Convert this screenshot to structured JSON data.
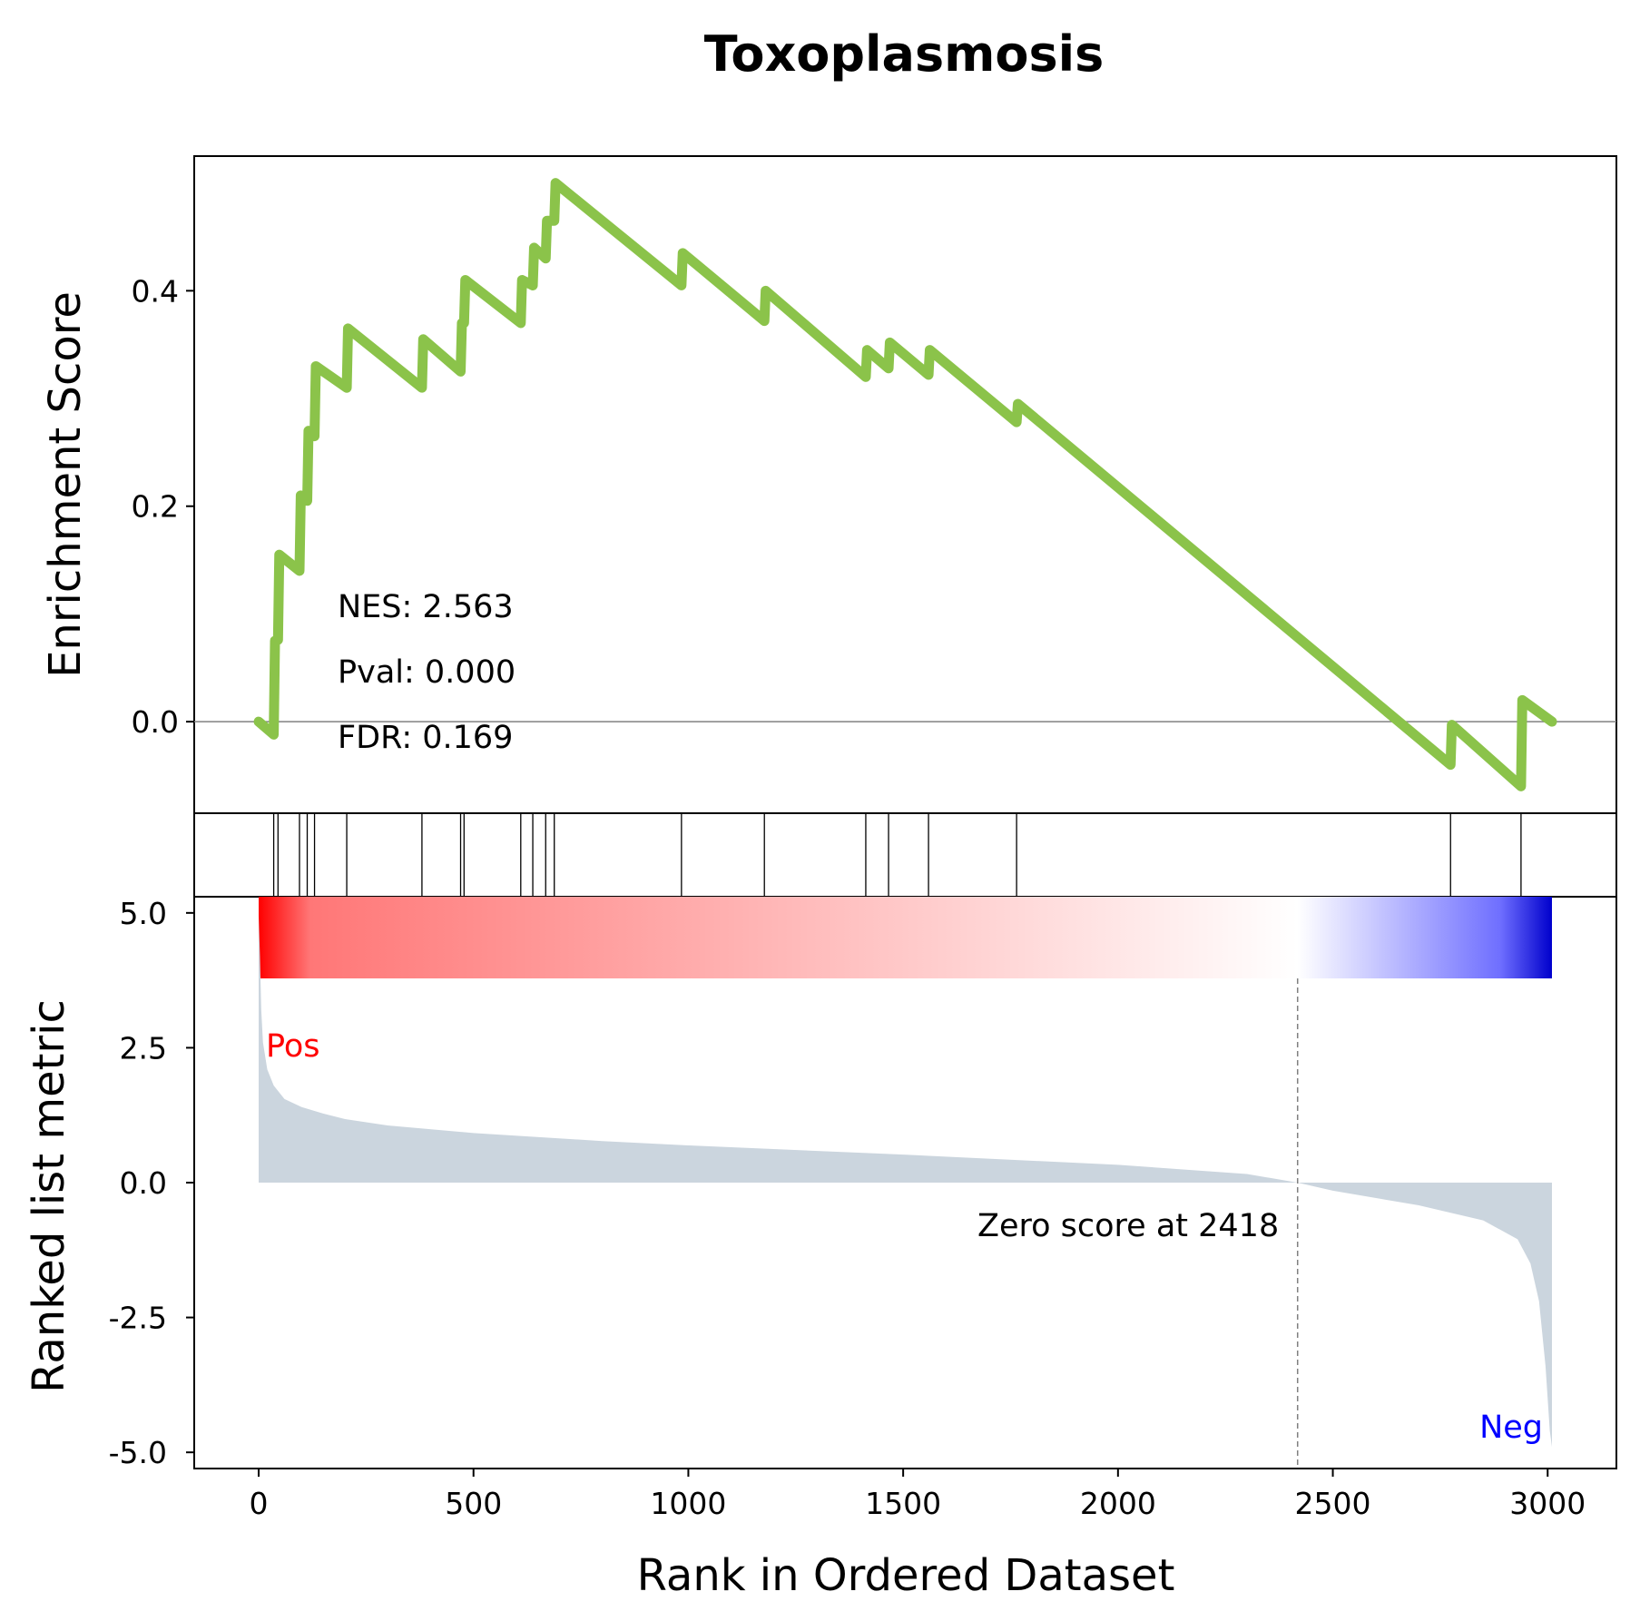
{
  "chart_data": {
    "type": "line",
    "title": "Toxoplasmosis",
    "xlabel": "Rank in Ordered Dataset",
    "x_ticks": [
      "0",
      "500",
      "1000",
      "1500",
      "2000",
      "2500",
      "3000"
    ],
    "xlim": [
      -150,
      3160
    ],
    "enrichment": {
      "ylabel": "Enrichment Score",
      "ylim": [
        -0.085,
        0.525
      ],
      "y_ticks": [
        "0.0",
        "0.2",
        "0.4"
      ],
      "line_color": "#8bc34a",
      "zero_line_color": "#808080",
      "points": [
        [
          0,
          0.0
        ],
        [
          35,
          -0.012
        ],
        [
          38,
          0.075
        ],
        [
          45,
          0.076
        ],
        [
          48,
          0.155
        ],
        [
          95,
          0.14
        ],
        [
          98,
          0.21
        ],
        [
          113,
          0.205
        ],
        [
          116,
          0.27
        ],
        [
          130,
          0.265
        ],
        [
          133,
          0.33
        ],
        [
          205,
          0.31
        ],
        [
          208,
          0.365
        ],
        [
          380,
          0.31
        ],
        [
          383,
          0.355
        ],
        [
          470,
          0.325
        ],
        [
          473,
          0.37
        ],
        [
          478,
          0.37
        ],
        [
          481,
          0.41
        ],
        [
          610,
          0.37
        ],
        [
          613,
          0.41
        ],
        [
          638,
          0.405
        ],
        [
          641,
          0.44
        ],
        [
          668,
          0.43
        ],
        [
          671,
          0.465
        ],
        [
          688,
          0.465
        ],
        [
          691,
          0.5
        ],
        [
          984,
          0.405
        ],
        [
          987,
          0.435
        ],
        [
          1177,
          0.372
        ],
        [
          1180,
          0.4
        ],
        [
          1413,
          0.32
        ],
        [
          1416,
          0.345
        ],
        [
          1466,
          0.328
        ],
        [
          1469,
          0.352
        ],
        [
          1559,
          0.322
        ],
        [
          1562,
          0.345
        ],
        [
          1764,
          0.278
        ],
        [
          1767,
          0.295
        ],
        [
          2774,
          -0.04
        ],
        [
          2777,
          -0.003
        ],
        [
          2938,
          -0.06
        ],
        [
          2941,
          0.02
        ],
        [
          3010,
          0.0
        ]
      ],
      "annotations": {
        "nes": "NES: 2.563",
        "pval": "Pval: 0.000",
        "fdr": "FDR: 0.169"
      }
    },
    "hits": {
      "positions": [
        35,
        45,
        95,
        113,
        130,
        205,
        380,
        470,
        478,
        610,
        638,
        668,
        688,
        984,
        1177,
        1413,
        1466,
        1559,
        1764,
        2774,
        2938
      ],
      "color": "#000000"
    },
    "ranked_metric": {
      "ylabel": "Ranked list metric",
      "ylim": [
        -5.3,
        5.3
      ],
      "y_ticks": [
        [
          "5.0",
          5.0
        ],
        [
          "2.5",
          2.5
        ],
        [
          "0.0",
          0.0
        ],
        [
          "-2.5",
          -2.5
        ],
        [
          "-5.0",
          -5.0
        ]
      ],
      "fill_color": "#cbd5de",
      "zero_cross_rank": 2418,
      "zero_cross_label": "Zero score at 2418",
      "pos_label": "Pos",
      "neg_label": "Neg",
      "pos_color": "#ff0000",
      "neg_color": "#0000ff",
      "dashed_line_color": "#808080",
      "gradient_start_color": "#ff0000",
      "gradient_mid_color": "#ffffff",
      "gradient_end_color": "#0000cc",
      "profile": [
        [
          0,
          4.95
        ],
        [
          3,
          4.2
        ],
        [
          6,
          3.2
        ],
        [
          10,
          2.6
        ],
        [
          20,
          2.1
        ],
        [
          35,
          1.8
        ],
        [
          60,
          1.55
        ],
        [
          100,
          1.4
        ],
        [
          150,
          1.28
        ],
        [
          200,
          1.18
        ],
        [
          300,
          1.06
        ],
        [
          500,
          0.92
        ],
        [
          800,
          0.77
        ],
        [
          1000,
          0.69
        ],
        [
          1500,
          0.52
        ],
        [
          2000,
          0.33
        ],
        [
          2300,
          0.16
        ],
        [
          2418,
          0.0
        ],
        [
          2500,
          -0.15
        ],
        [
          2700,
          -0.42
        ],
        [
          2850,
          -0.7
        ],
        [
          2930,
          -1.05
        ],
        [
          2960,
          -1.5
        ],
        [
          2980,
          -2.2
        ],
        [
          2995,
          -3.4
        ],
        [
          3005,
          -4.6
        ],
        [
          3010,
          -4.9
        ]
      ]
    }
  }
}
